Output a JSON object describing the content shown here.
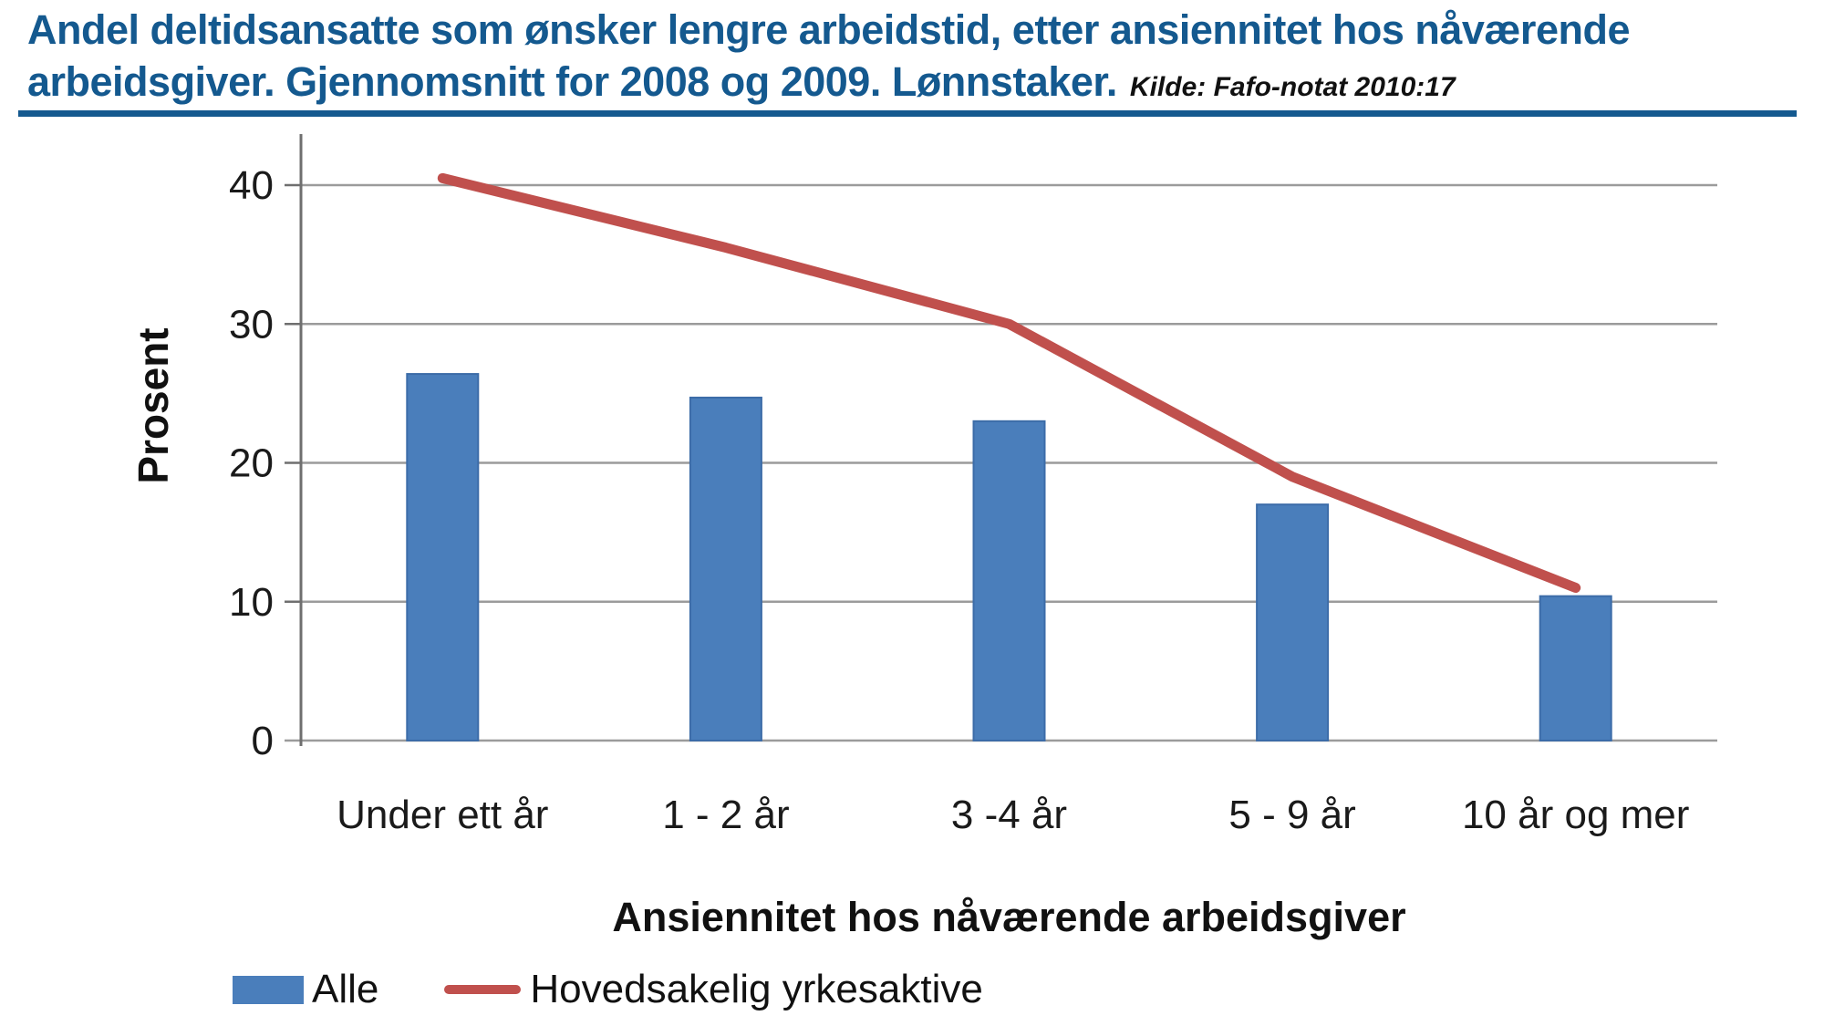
{
  "header": {
    "title_line1": "Andel deltidsansatte som ønsker lengre arbeidstid, etter ansiennitet hos nåværende",
    "title_line2": "arbeidsgiver. Gjennomsnitt for 2008 og 2009. Lønnstaker.",
    "source": "Kilde: Fafo-notat 2010:17"
  },
  "chart_data": {
    "type": "bar",
    "categories": [
      "Under ett år",
      "1 - 2 år",
      "3 -4 år",
      "5 - 9 år",
      "10 år og mer"
    ],
    "series": [
      {
        "name": "Alle",
        "type": "bar",
        "values": [
          26.4,
          24.7,
          23.0,
          17.0,
          10.4
        ]
      },
      {
        "name": "Hovedsakelig yrkesaktive",
        "type": "line",
        "values": [
          40.5,
          35.5,
          30.0,
          19.0,
          11.0
        ]
      }
    ],
    "title": "Andel deltidsansatte som ønsker lengre arbeidstid, etter ansiennitet hos nåværende arbeidsgiver. Gjennomsnitt for 2008 og 2009. Lønnstaker.",
    "xlabel": "Ansiennitet hos nåværende arbeidsgiver",
    "ylabel": "Prosent",
    "yticks": [
      0,
      10,
      20,
      30,
      40
    ],
    "ylim": [
      0,
      44
    ],
    "grid": true,
    "legend_position": "bottom-left"
  },
  "colors": {
    "title": "#14598f",
    "rule": "#14598f",
    "bar": "#4a7ebb",
    "bar_border": "#3c6ca8",
    "line": "#c0504d",
    "grid": "#9b9b9b",
    "axis": "#6f6f6f",
    "text": "#1a1a1a"
  }
}
